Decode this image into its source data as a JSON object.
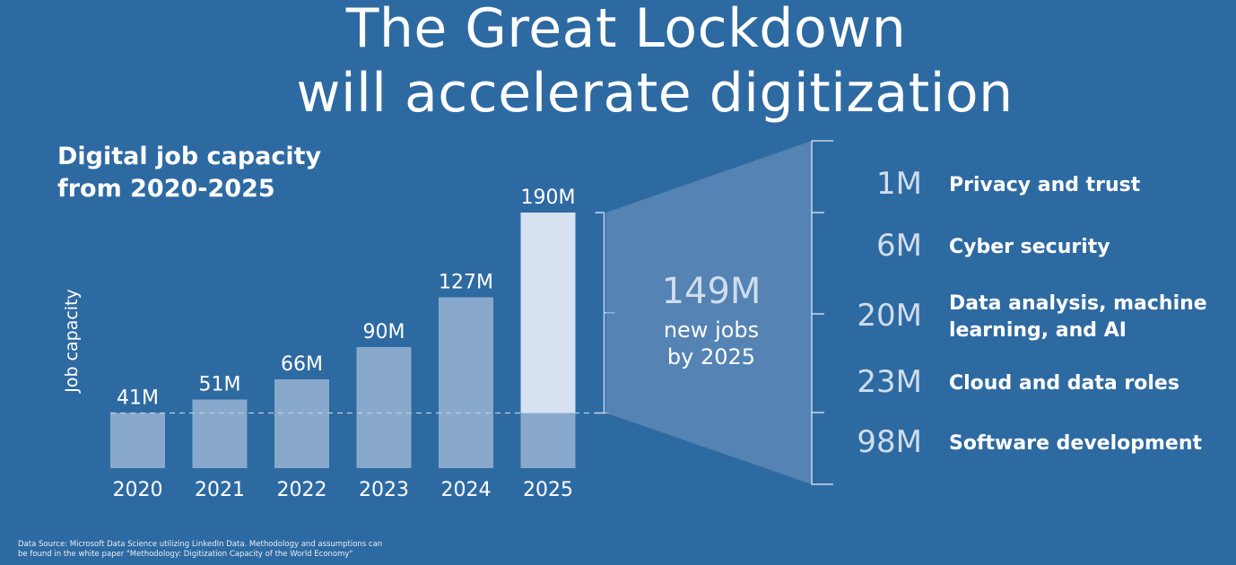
{
  "title": {
    "line1": "The Great Lockdown",
    "line2": "will accelerate digitization"
  },
  "chart_data": {
    "type": "bar",
    "title": "Digital job capacity from 2020-2025",
    "title_lines": [
      "Digital job capacity",
      "from 2020-2025"
    ],
    "ylabel": "Job capacity",
    "categories": [
      "2020",
      "2021",
      "2022",
      "2023",
      "2024",
      "2025"
    ],
    "values": [
      41,
      51,
      66,
      90,
      127,
      190
    ],
    "value_labels": [
      "41M",
      "51M",
      "66M",
      "90M",
      "127M",
      "190M"
    ],
    "unit": "M",
    "baseline_value": 41,
    "highlight": {
      "label": "149M",
      "caption_lines": [
        "new jobs",
        "by 2025"
      ]
    },
    "breakdown": [
      {
        "value": "1M",
        "lines": [
          "Privacy and trust"
        ]
      },
      {
        "value": "6M",
        "lines": [
          "Cyber security"
        ]
      },
      {
        "value": "20M",
        "lines": [
          "Data analysis, machine",
          "learning, and AI"
        ]
      },
      {
        "value": "23M",
        "lines": [
          "Cloud and data roles"
        ]
      },
      {
        "value": "98M",
        "lines": [
          "Software development"
        ]
      }
    ],
    "colors": {
      "background": "#2e6aa2",
      "bar": "#88a9cc",
      "bar_highlight": "#d6e2ef",
      "funnel": "#6e95c0",
      "text": "#ffffff",
      "value_text": "#d0ddec"
    }
  },
  "source": {
    "line1": "Data Source: Microsoft Data Science utilizing LinkedIn Data. Methodology and assumptions can",
    "line2": "be found in the white paper \"Methodology: Digitization Capacity of the World Economy\""
  }
}
